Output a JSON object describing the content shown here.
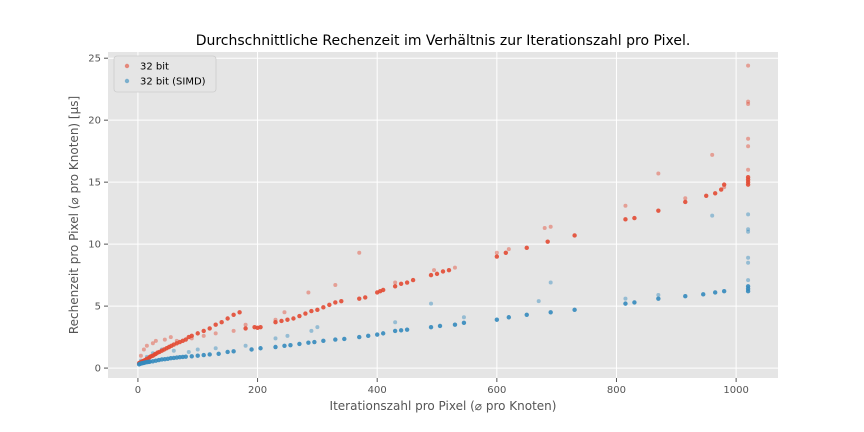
{
  "chart_data": {
    "type": "scatter",
    "title": "Durchschnittliche Rechenzeit im Verhältnis zur Iterationszahl pro Pixel.",
    "xlabel": "Iterationszahl pro Pixel (⌀ pro Knoten)",
    "ylabel": "Rechenzeit pro Pixel (⌀ pro Knoten) [µs]",
    "xlim": [
      -50,
      1070
    ],
    "ylim": [
      -0.8,
      25.5
    ],
    "xticks": [
      0,
      200,
      400,
      600,
      800,
      1000
    ],
    "yticks": [
      0,
      5,
      10,
      15,
      20,
      25
    ],
    "grid": true,
    "legend_position": "top-left",
    "colors": {
      "background": "#e5e5e5",
      "grid": "#ffffff",
      "series_1": "#e24a33",
      "series_2": "#348abd"
    },
    "series": [
      {
        "name": "32 bit",
        "points": [
          [
            2,
            0.4
          ],
          [
            4,
            0.45
          ],
          [
            6,
            0.5
          ],
          [
            8,
            0.55
          ],
          [
            10,
            0.6
          ],
          [
            12,
            0.65
          ],
          [
            15,
            0.75
          ],
          [
            18,
            0.8
          ],
          [
            20,
            0.9
          ],
          [
            22,
            0.95
          ],
          [
            25,
            1.0
          ],
          [
            28,
            1.1
          ],
          [
            30,
            1.15
          ],
          [
            33,
            1.25
          ],
          [
            36,
            1.3
          ],
          [
            40,
            1.4
          ],
          [
            44,
            1.5
          ],
          [
            48,
            1.6
          ],
          [
            52,
            1.7
          ],
          [
            56,
            1.8
          ],
          [
            60,
            1.9
          ],
          [
            65,
            2.0
          ],
          [
            70,
            2.1
          ],
          [
            75,
            2.2
          ],
          [
            80,
            2.3
          ],
          [
            85,
            2.5
          ],
          [
            90,
            2.6
          ],
          [
            100,
            2.8
          ],
          [
            110,
            3.0
          ],
          [
            120,
            3.2
          ],
          [
            130,
            3.5
          ],
          [
            140,
            3.7
          ],
          [
            150,
            4.0
          ],
          [
            160,
            4.3
          ],
          [
            170,
            4.5
          ],
          [
            180,
            3.2
          ],
          [
            195,
            3.3
          ],
          [
            200,
            3.25
          ],
          [
            205,
            3.3
          ],
          [
            230,
            3.7
          ],
          [
            240,
            3.8
          ],
          [
            250,
            3.9
          ],
          [
            260,
            4.0
          ],
          [
            270,
            4.2
          ],
          [
            280,
            4.4
          ],
          [
            290,
            4.6
          ],
          [
            300,
            4.7
          ],
          [
            310,
            4.9
          ],
          [
            320,
            5.1
          ],
          [
            330,
            5.3
          ],
          [
            340,
            5.4
          ],
          [
            370,
            5.6
          ],
          [
            380,
            5.7
          ],
          [
            400,
            6.1
          ],
          [
            405,
            6.2
          ],
          [
            410,
            6.3
          ],
          [
            430,
            6.6
          ],
          [
            440,
            6.8
          ],
          [
            450,
            6.9
          ],
          [
            460,
            7.1
          ],
          [
            490,
            7.5
          ],
          [
            500,
            7.6
          ],
          [
            510,
            7.8
          ],
          [
            520,
            7.9
          ],
          [
            600,
            9.0
          ],
          [
            615,
            9.3
          ],
          [
            650,
            9.7
          ],
          [
            685,
            10.2
          ],
          [
            730,
            10.7
          ],
          [
            815,
            12.0
          ],
          [
            830,
            12.1
          ],
          [
            870,
            12.7
          ],
          [
            915,
            13.4
          ],
          [
            950,
            13.9
          ],
          [
            965,
            14.1
          ],
          [
            975,
            14.4
          ],
          [
            980,
            14.8
          ],
          [
            1020,
            14.8
          ],
          [
            1020,
            15.0
          ],
          [
            1020,
            15.2
          ],
          [
            1020,
            15.4
          ]
        ],
        "faint_points": [
          [
            5,
            1.0
          ],
          [
            10,
            1.5
          ],
          [
            15,
            1.8
          ],
          [
            25,
            2.0
          ],
          [
            30,
            2.2
          ],
          [
            45,
            2.3
          ],
          [
            55,
            2.5
          ],
          [
            65,
            2.2
          ],
          [
            90,
            2.4
          ],
          [
            110,
            2.6
          ],
          [
            130,
            2.8
          ],
          [
            160,
            3.0
          ],
          [
            180,
            3.5
          ],
          [
            230,
            3.9
          ],
          [
            245,
            4.5
          ],
          [
            285,
            6.1
          ],
          [
            330,
            6.7
          ],
          [
            370,
            9.3
          ],
          [
            430,
            6.9
          ],
          [
            495,
            7.9
          ],
          [
            530,
            8.1
          ],
          [
            600,
            9.3
          ],
          [
            620,
            9.6
          ],
          [
            680,
            11.3
          ],
          [
            690,
            11.4
          ],
          [
            815,
            13.1
          ],
          [
            870,
            15.7
          ],
          [
            915,
            13.7
          ],
          [
            960,
            17.2
          ],
          [
            980,
            14.6
          ],
          [
            1020,
            16.0
          ],
          [
            1020,
            17.9
          ],
          [
            1020,
            18.5
          ],
          [
            1020,
            21.3
          ],
          [
            1020,
            21.5
          ],
          [
            1020,
            24.4
          ]
        ]
      },
      {
        "name": "32 bit (SIMD)",
        "points": [
          [
            2,
            0.3
          ],
          [
            4,
            0.35
          ],
          [
            6,
            0.38
          ],
          [
            8,
            0.4
          ],
          [
            10,
            0.42
          ],
          [
            12,
            0.45
          ],
          [
            15,
            0.48
          ],
          [
            18,
            0.5
          ],
          [
            20,
            0.52
          ],
          [
            25,
            0.55
          ],
          [
            30,
            0.6
          ],
          [
            35,
            0.65
          ],
          [
            40,
            0.7
          ],
          [
            45,
            0.72
          ],
          [
            50,
            0.75
          ],
          [
            55,
            0.8
          ],
          [
            60,
            0.82
          ],
          [
            65,
            0.85
          ],
          [
            70,
            0.88
          ],
          [
            75,
            0.9
          ],
          [
            80,
            0.92
          ],
          [
            90,
            0.95
          ],
          [
            100,
            1.0
          ],
          [
            110,
            1.05
          ],
          [
            120,
            1.1
          ],
          [
            135,
            1.15
          ],
          [
            150,
            1.3
          ],
          [
            160,
            1.35
          ],
          [
            190,
            1.5
          ],
          [
            205,
            1.6
          ],
          [
            230,
            1.7
          ],
          [
            245,
            1.8
          ],
          [
            255,
            1.85
          ],
          [
            270,
            1.95
          ],
          [
            285,
            2.05
          ],
          [
            295,
            2.1
          ],
          [
            310,
            2.2
          ],
          [
            330,
            2.3
          ],
          [
            345,
            2.35
          ],
          [
            370,
            2.5
          ],
          [
            385,
            2.6
          ],
          [
            400,
            2.7
          ],
          [
            410,
            2.8
          ],
          [
            430,
            3.0
          ],
          [
            440,
            3.05
          ],
          [
            450,
            3.1
          ],
          [
            490,
            3.3
          ],
          [
            505,
            3.4
          ],
          [
            530,
            3.5
          ],
          [
            545,
            3.65
          ],
          [
            600,
            3.9
          ],
          [
            620,
            4.1
          ],
          [
            650,
            4.3
          ],
          [
            690,
            4.5
          ],
          [
            730,
            4.7
          ],
          [
            815,
            5.2
          ],
          [
            830,
            5.3
          ],
          [
            870,
            5.6
          ],
          [
            915,
            5.8
          ],
          [
            945,
            5.95
          ],
          [
            965,
            6.1
          ],
          [
            980,
            6.2
          ],
          [
            1020,
            6.2
          ],
          [
            1020,
            6.4
          ],
          [
            1020,
            6.6
          ]
        ],
        "faint_points": [
          [
            5,
            0.6
          ],
          [
            15,
            0.9
          ],
          [
            25,
            1.2
          ],
          [
            40,
            1.5
          ],
          [
            60,
            1.4
          ],
          [
            85,
            1.3
          ],
          [
            100,
            1.5
          ],
          [
            130,
            1.6
          ],
          [
            180,
            1.8
          ],
          [
            230,
            2.4
          ],
          [
            250,
            2.6
          ],
          [
            290,
            3.0
          ],
          [
            300,
            3.3
          ],
          [
            430,
            3.7
          ],
          [
            490,
            5.2
          ],
          [
            545,
            4.1
          ],
          [
            670,
            5.4
          ],
          [
            690,
            6.9
          ],
          [
            815,
            5.6
          ],
          [
            870,
            5.9
          ],
          [
            960,
            12.3
          ],
          [
            1020,
            7.1
          ],
          [
            1020,
            8.5
          ],
          [
            1020,
            8.9
          ],
          [
            1020,
            11.0
          ],
          [
            1020,
            11.2
          ],
          [
            1020,
            12.4
          ]
        ]
      }
    ]
  }
}
